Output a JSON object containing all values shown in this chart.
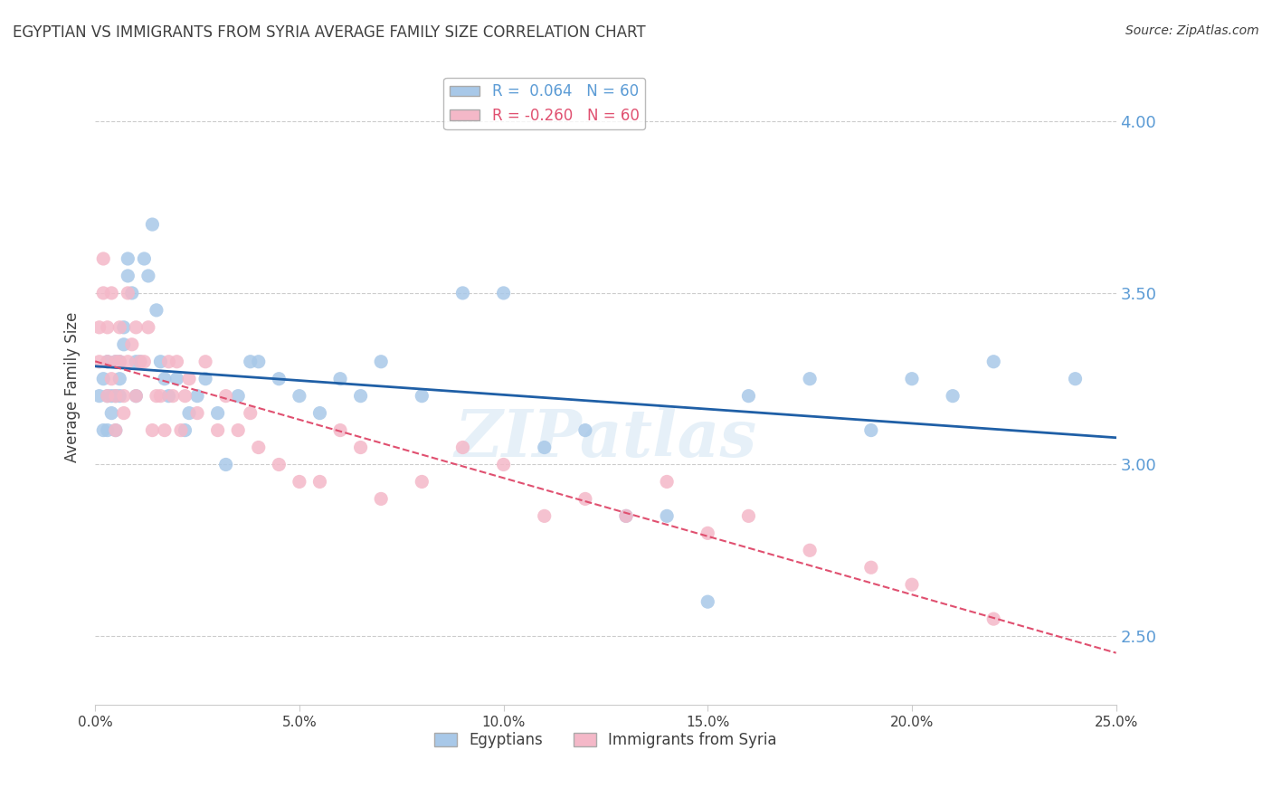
{
  "title": "EGYPTIAN VS IMMIGRANTS FROM SYRIA AVERAGE FAMILY SIZE CORRELATION CHART",
  "source": "Source: ZipAtlas.com",
  "ylabel": "Average Family Size",
  "legend_r1_color": "#5b9bd5",
  "trendline_pink_color": "#e05070",
  "bg_color": "#ffffff",
  "grid_color": "#cccccc",
  "title_color": "#404040",
  "right_axis_color": "#5b9bd5",
  "watermark": "ZIPatlas",
  "scatter_blue_color": "#a8c8e8",
  "scatter_pink_color": "#f4b8c8",
  "trendline_blue_color": "#1f5fa6",
  "egyptians_x": [
    0.001,
    0.002,
    0.002,
    0.003,
    0.003,
    0.003,
    0.004,
    0.004,
    0.005,
    0.005,
    0.005,
    0.006,
    0.006,
    0.006,
    0.007,
    0.007,
    0.008,
    0.008,
    0.009,
    0.01,
    0.01,
    0.011,
    0.012,
    0.013,
    0.014,
    0.015,
    0.016,
    0.017,
    0.018,
    0.02,
    0.022,
    0.023,
    0.025,
    0.027,
    0.03,
    0.032,
    0.035,
    0.038,
    0.04,
    0.045,
    0.05,
    0.055,
    0.06,
    0.065,
    0.07,
    0.08,
    0.09,
    0.1,
    0.11,
    0.12,
    0.13,
    0.14,
    0.15,
    0.16,
    0.175,
    0.19,
    0.2,
    0.21,
    0.22,
    0.24
  ],
  "egyptians_y": [
    3.2,
    3.1,
    3.25,
    3.3,
    3.1,
    3.2,
    3.15,
    3.2,
    3.3,
    3.2,
    3.1,
    3.25,
    3.3,
    3.2,
    3.35,
    3.4,
    3.6,
    3.55,
    3.5,
    3.3,
    3.2,
    3.3,
    3.6,
    3.55,
    3.7,
    3.45,
    3.3,
    3.25,
    3.2,
    3.25,
    3.1,
    3.15,
    3.2,
    3.25,
    3.15,
    3.0,
    3.2,
    3.3,
    3.3,
    3.25,
    3.2,
    3.15,
    3.25,
    3.2,
    3.3,
    3.2,
    3.5,
    3.5,
    3.05,
    3.1,
    2.85,
    2.85,
    2.6,
    3.2,
    3.25,
    3.1,
    3.25,
    3.2,
    3.3,
    3.25
  ],
  "syria_x": [
    0.001,
    0.001,
    0.002,
    0.002,
    0.003,
    0.003,
    0.003,
    0.004,
    0.004,
    0.005,
    0.005,
    0.005,
    0.006,
    0.006,
    0.007,
    0.007,
    0.008,
    0.008,
    0.009,
    0.01,
    0.01,
    0.011,
    0.012,
    0.013,
    0.014,
    0.015,
    0.016,
    0.017,
    0.018,
    0.019,
    0.02,
    0.021,
    0.022,
    0.023,
    0.025,
    0.027,
    0.03,
    0.032,
    0.035,
    0.038,
    0.04,
    0.045,
    0.05,
    0.055,
    0.06,
    0.065,
    0.07,
    0.08,
    0.09,
    0.1,
    0.11,
    0.12,
    0.13,
    0.14,
    0.15,
    0.16,
    0.175,
    0.19,
    0.2,
    0.22
  ],
  "syria_y": [
    3.3,
    3.4,
    3.5,
    3.6,
    3.2,
    3.3,
    3.4,
    3.5,
    3.25,
    3.3,
    3.2,
    3.1,
    3.3,
    3.4,
    3.15,
    3.2,
    3.5,
    3.3,
    3.35,
    3.4,
    3.2,
    3.3,
    3.3,
    3.4,
    3.1,
    3.2,
    3.2,
    3.1,
    3.3,
    3.2,
    3.3,
    3.1,
    3.2,
    3.25,
    3.15,
    3.3,
    3.1,
    3.2,
    3.1,
    3.15,
    3.05,
    3.0,
    2.95,
    2.95,
    3.1,
    3.05,
    2.9,
    2.95,
    3.05,
    3.0,
    2.85,
    2.9,
    2.85,
    2.95,
    2.8,
    2.85,
    2.75,
    2.7,
    2.65,
    2.55
  ],
  "xlim": [
    0.0,
    0.25
  ],
  "ylim": [
    2.3,
    4.15
  ],
  "yticks_right": [
    2.5,
    3.0,
    3.5,
    4.0
  ],
  "xticks": [
    0.0,
    0.05,
    0.1,
    0.15,
    0.2,
    0.25
  ],
  "xticklabels": [
    "0.0%",
    "5.0%",
    "10.0%",
    "15.0%",
    "20.0%",
    "25.0%"
  ]
}
